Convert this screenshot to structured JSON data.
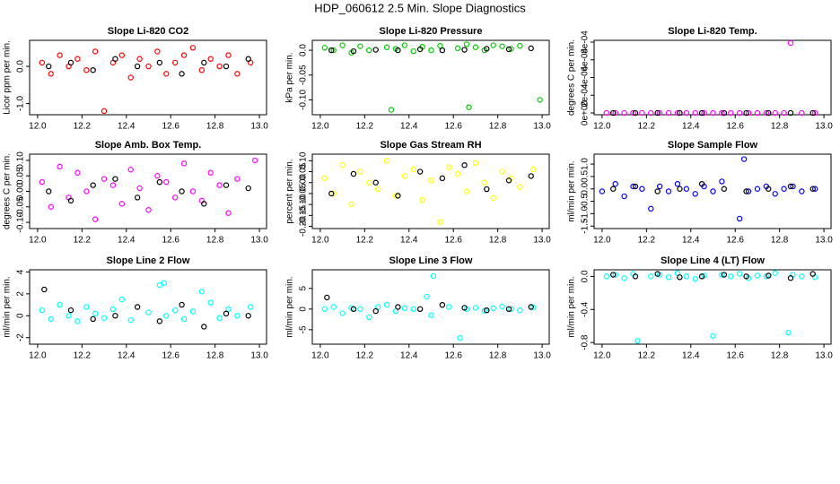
{
  "title": "HDP_060612  2.5 Min. Slope Diagnostics",
  "chart_data": [
    {
      "type": "scatter",
      "title": "Slope Li-820 CO2",
      "y_label": "Licor ppm per min.",
      "xlim": [
        11.964,
        13.032
      ],
      "xticks": [
        {
          "value": 12,
          "label": "12.0"
        },
        12.2,
        12.4,
        12.6,
        12.8,
        {
          "value": 13,
          "label": "13.0"
        }
      ],
      "ylim": [
        -1.3,
        0.7
      ],
      "yticks": [
        {
          "value": -1,
          "label": "-1.0"
        },
        {
          "value": 0,
          "label": "0.0"
        }
      ],
      "series": [
        {
          "color": "#ff0000",
          "x": [
            12.02,
            12.06,
            12.1,
            12.14,
            12.18,
            12.22,
            12.26,
            12.3,
            12.34,
            12.38,
            12.42,
            12.46,
            12.5,
            12.54,
            12.58,
            12.62,
            12.66,
            12.7,
            12.74,
            12.78,
            12.82,
            12.86,
            12.9,
            12.96
          ],
          "values": [
            0.1,
            -0.2,
            0.3,
            0.0,
            0.2,
            -0.1,
            0.4,
            -1.2,
            0.1,
            0.3,
            -0.3,
            0.2,
            0.0,
            0.4,
            -0.2,
            0.1,
            0.3,
            0.5,
            -0.1,
            0.2,
            0.0,
            0.3,
            -0.2,
            0.1
          ]
        },
        {
          "color": "#000000",
          "x": [
            12.05,
            12.15,
            12.25,
            12.35,
            12.45,
            12.55,
            12.65,
            12.75,
            12.85,
            12.95
          ],
          "values": [
            0.0,
            0.1,
            -0.1,
            0.2,
            0.0,
            0.1,
            -0.2,
            0.1,
            0.0,
            0.2
          ]
        }
      ]
    },
    {
      "type": "scatter",
      "title": "Slope Li-820 Pressure",
      "y_label": "kPa per min.",
      "xlim": [
        11.964,
        13.032
      ],
      "xticks": [
        {
          "value": 12,
          "label": "12.0"
        },
        12.2,
        12.4,
        12.6,
        12.8,
        {
          "value": 13,
          "label": "13.0"
        }
      ],
      "ylim": [
        -0.13,
        0.02
      ],
      "yticks": [
        {
          "value": -0.1,
          "label": "-0.10"
        },
        -0.05,
        {
          "value": 0,
          "label": "0.0"
        }
      ],
      "series": [
        {
          "color": "#00cc00",
          "x": [
            12.02,
            12.06,
            12.1,
            12.14,
            12.18,
            12.22,
            12.32,
            12.3,
            12.34,
            12.38,
            12.42,
            12.46,
            12.5,
            12.54,
            12.67,
            12.62,
            12.66,
            12.7,
            12.74,
            12.78,
            12.82,
            12.86,
            12.9,
            12.99
          ],
          "values": [
            0.005,
            0.0,
            0.01,
            -0.005,
            0.008,
            0.0,
            -0.12,
            0.006,
            0.003,
            0.01,
            -0.002,
            0.007,
            0.0,
            0.009,
            -0.115,
            0.004,
            0.012,
            0.006,
            0.0,
            0.01,
            0.008,
            0.003,
            0.009,
            -0.1
          ]
        },
        {
          "color": "#000000",
          "x": [
            12.05,
            12.15,
            12.25,
            12.35,
            12.45,
            12.55,
            12.65,
            12.75,
            12.85,
            12.95
          ],
          "values": [
            0.0,
            -0.002,
            0.001,
            0.0,
            0.002,
            0.0,
            0.001,
            0.003,
            0.002,
            0.004
          ]
        }
      ]
    },
    {
      "type": "scatter",
      "title": "Slope Li-820 Temp.",
      "y_label": "degrees C per min.",
      "xlim": [
        11.964,
        13.032
      ],
      "xticks": [
        {
          "value": 12,
          "label": "12.0"
        },
        12.2,
        12.4,
        12.6,
        12.8,
        {
          "value": 13,
          "label": "13.0"
        }
      ],
      "ylim": [
        -2e-05,
        0.00082
      ],
      "yticks": [
        {
          "value": 0,
          "label": "0e+00"
        },
        {
          "value": 0.0002,
          "label": "2e-04"
        },
        {
          "value": 0.0004,
          "label": "4e-04"
        },
        {
          "value": 0.0006,
          "label": "6e-04"
        },
        {
          "value": 0.0008,
          "label": "8e-04"
        }
      ],
      "series": [
        {
          "color": "#ff00ff",
          "x": [
            12.02,
            12.06,
            12.1,
            12.14,
            12.18,
            12.22,
            12.26,
            12.3,
            12.34,
            12.38,
            12.42,
            12.46,
            12.5,
            12.54,
            12.58,
            12.62,
            12.66,
            12.7,
            12.74,
            12.78,
            12.82,
            12.85,
            12.9,
            12.96
          ],
          "values": [
            0,
            0,
            0,
            0,
            0,
            0,
            0,
            0,
            0,
            0,
            0,
            0,
            0,
            0,
            0,
            0,
            0,
            0,
            0,
            0,
            0,
            0.00079,
            0,
            0
          ]
        },
        {
          "color": "#000000",
          "x": [
            12.05,
            12.15,
            12.25,
            12.35,
            12.45,
            12.55,
            12.65,
            12.75,
            12.85,
            12.95
          ],
          "values": [
            0,
            0,
            0,
            0,
            0,
            0,
            0,
            0,
            0,
            0
          ]
        }
      ]
    },
    {
      "type": "scatter",
      "title": "Slope Amb. Box Temp.",
      "y_label": "degrees C per min.",
      "xlim": [
        11.964,
        13.032
      ],
      "xticks": [
        {
          "value": 12,
          "label": "12.0"
        },
        12.2,
        12.4,
        12.6,
        12.8,
        {
          "value": 13,
          "label": "13.0"
        }
      ],
      "ylim": [
        -0.12,
        0.12
      ],
      "yticks": [
        {
          "value": -0.1,
          "label": "-0.10"
        },
        -0.05,
        {
          "value": 0,
          "label": "0.00"
        },
        0.05,
        {
          "value": 0.1,
          "label": "0.10"
        }
      ],
      "series": [
        {
          "color": "#ff00ff",
          "x": [
            12.02,
            12.06,
            12.1,
            12.14,
            12.18,
            12.22,
            12.26,
            12.3,
            12.34,
            12.38,
            12.42,
            12.46,
            12.5,
            12.54,
            12.58,
            12.62,
            12.66,
            12.7,
            12.74,
            12.78,
            12.82,
            12.86,
            12.9,
            12.98
          ],
          "values": [
            0.03,
            -0.05,
            0.08,
            -0.02,
            0.06,
            0.0,
            -0.09,
            0.04,
            0.02,
            -0.04,
            0.07,
            0.01,
            -0.06,
            0.05,
            0.03,
            -0.02,
            0.09,
            0.0,
            -0.03,
            0.06,
            0.02,
            -0.07,
            0.04,
            0.1
          ]
        },
        {
          "color": "#000000",
          "x": [
            12.05,
            12.15,
            12.25,
            12.35,
            12.45,
            12.55,
            12.65,
            12.75,
            12.85,
            12.95
          ],
          "values": [
            0.0,
            -0.03,
            0.02,
            0.04,
            -0.02,
            0.03,
            0.0,
            -0.04,
            0.02,
            0.01
          ]
        }
      ]
    },
    {
      "type": "scatter",
      "title": "Slope Gas Stream RH",
      "y_label": "percent per min.",
      "xlim": [
        11.964,
        13.032
      ],
      "xticks": [
        {
          "value": 12,
          "label": "12.0"
        },
        12.2,
        12.4,
        12.6,
        12.8,
        {
          "value": 13,
          "label": "13.0"
        }
      ],
      "ylim": [
        -0.21,
        0.13
      ],
      "yticks": [
        {
          "value": -0.2,
          "label": "-0.20"
        },
        -0.15,
        {
          "value": -0.1,
          "label": "-0.10"
        },
        -0.05,
        {
          "value": 0,
          "label": "0.00"
        },
        0.05,
        {
          "value": 0.1,
          "label": "0.10"
        }
      ],
      "series": [
        {
          "color": "#ffff00",
          "x": [
            12.02,
            12.06,
            12.1,
            12.14,
            12.18,
            12.22,
            12.26,
            12.3,
            12.34,
            12.38,
            12.42,
            12.46,
            12.5,
            12.54,
            12.58,
            12.62,
            12.66,
            12.7,
            12.74,
            12.78,
            12.82,
            12.86,
            12.9,
            12.96
          ],
          "values": [
            0.02,
            -0.05,
            0.08,
            -0.1,
            0.05,
            0.0,
            -0.03,
            0.1,
            -0.06,
            0.03,
            0.06,
            -0.08,
            0.01,
            -0.18,
            0.07,
            0.04,
            -0.04,
            0.09,
            0.0,
            -0.07,
            0.05,
            0.02,
            -0.02,
            0.06
          ]
        },
        {
          "color": "#000000",
          "x": [
            12.05,
            12.15,
            12.25,
            12.35,
            12.45,
            12.55,
            12.65,
            12.75,
            12.85,
            12.95
          ],
          "values": [
            -0.05,
            0.04,
            0.0,
            -0.06,
            0.05,
            0.02,
            0.08,
            -0.03,
            0.01,
            0.03
          ]
        }
      ]
    },
    {
      "type": "scatter",
      "title": "Slope Sample Flow",
      "y_label": "ml/min per min.",
      "xlim": [
        11.964,
        13.032
      ],
      "xticks": [
        {
          "value": 12,
          "label": "12.0"
        },
        12.2,
        12.4,
        12.6,
        12.8,
        {
          "value": 13,
          "label": "13.0"
        }
      ],
      "ylim": [
        -1.6,
        1.4
      ],
      "yticks": [
        -1.5,
        {
          "value": -1,
          "label": "-1.0"
        },
        -0.5,
        {
          "value": 0,
          "label": "0.0"
        },
        0.5,
        {
          "value": 1,
          "label": "1.0"
        }
      ],
      "series": [
        {
          "color": "#0000ff",
          "x": [
            12.0,
            12.06,
            12.1,
            12.14,
            12.18,
            12.22,
            12.26,
            12.3,
            12.34,
            12.38,
            12.42,
            12.46,
            12.5,
            12.54,
            12.62,
            12.64,
            12.66,
            12.7,
            12.74,
            12.78,
            12.82,
            12.86,
            12.9,
            12.96
          ],
          "values": [
            -0.1,
            0.2,
            -0.3,
            0.1,
            0.0,
            -0.8,
            0.1,
            -0.1,
            0.2,
            0.0,
            -0.2,
            0.1,
            -0.1,
            0.3,
            -1.2,
            1.2,
            -0.1,
            0.0,
            0.1,
            -0.2,
            0.0,
            0.1,
            -0.1,
            0.0
          ]
        },
        {
          "color": "#000000",
          "x": [
            12.05,
            12.15,
            12.25,
            12.35,
            12.45,
            12.55,
            12.65,
            12.75,
            12.85,
            12.95
          ],
          "values": [
            0.0,
            0.1,
            -0.1,
            0.0,
            0.2,
            0.0,
            -0.1,
            0.0,
            0.1,
            0.0
          ]
        }
      ]
    },
    {
      "type": "scatter",
      "title": "Slope Line 2 Flow",
      "y_label": "ml/min per min.",
      "xlim": [
        11.964,
        13.032
      ],
      "xticks": [
        {
          "value": 12,
          "label": "12.0"
        },
        12.2,
        12.4,
        12.6,
        12.8,
        {
          "value": 13,
          "label": "13.0"
        }
      ],
      "ylim": [
        -2.6,
        4.2
      ],
      "yticks": [
        -2,
        0,
        2,
        4
      ],
      "series": [
        {
          "color": "#00ffff",
          "x": [
            12.02,
            12.06,
            12.1,
            12.14,
            12.18,
            12.22,
            12.26,
            12.3,
            12.34,
            12.38,
            12.42,
            12.55,
            12.5,
            12.57,
            12.58,
            12.62,
            12.66,
            12.74,
            12.7,
            12.78,
            12.82,
            12.86,
            12.9,
            12.96
          ],
          "values": [
            0.5,
            -0.3,
            1.0,
            0.0,
            -0.5,
            0.8,
            0.2,
            -0.2,
            0.6,
            1.5,
            -0.4,
            2.8,
            0.3,
            3.0,
            0.0,
            0.5,
            -0.3,
            2.2,
            0.4,
            1.2,
            -0.2,
            0.6,
            0.0,
            0.8
          ]
        },
        {
          "color": "#000000",
          "x": [
            12.03,
            12.15,
            12.25,
            12.35,
            12.45,
            12.55,
            12.65,
            12.75,
            12.85,
            12.95
          ],
          "values": [
            2.4,
            0.5,
            -0.3,
            0.0,
            0.8,
            -0.5,
            1.0,
            -1.0,
            0.2,
            0.0
          ]
        }
      ]
    },
    {
      "type": "scatter",
      "title": "Slope Line 3 Flow",
      "y_label": "ml/min per min.",
      "xlim": [
        11.964,
        13.032
      ],
      "xticks": [
        {
          "value": 12,
          "label": "12.0"
        },
        12.2,
        12.4,
        12.6,
        12.8,
        {
          "value": 13,
          "label": "13.0"
        }
      ],
      "ylim": [
        -8.5,
        9.5
      ],
      "yticks": [
        -5,
        0,
        5
      ],
      "series": [
        {
          "color": "#00ffff",
          "x": [
            12.02,
            12.06,
            12.1,
            12.14,
            12.18,
            12.22,
            12.26,
            12.3,
            12.34,
            12.38,
            12.42,
            12.48,
            12.5,
            12.51,
            12.58,
            12.63,
            12.66,
            12.7,
            12.74,
            12.78,
            12.82,
            12.86,
            12.9,
            12.96
          ],
          "values": [
            0.0,
            0.5,
            -1.0,
            0.3,
            0.0,
            -2.0,
            0.5,
            1.0,
            -0.5,
            0.2,
            0.0,
            3.0,
            -1.5,
            8.0,
            0.5,
            -7.0,
            0.0,
            0.3,
            -0.4,
            0.2,
            0.6,
            0.0,
            -0.3,
            0.4
          ]
        },
        {
          "color": "#000000",
          "x": [
            12.03,
            12.15,
            12.25,
            12.35,
            12.45,
            12.55,
            12.65,
            12.75,
            12.85,
            12.95
          ],
          "values": [
            2.8,
            0.0,
            -0.5,
            0.5,
            0.0,
            1.0,
            0.3,
            -0.3,
            0.0,
            0.5
          ]
        }
      ]
    },
    {
      "type": "scatter",
      "title": "Slope Line 4 (LT) Flow",
      "y_label": "ml/min per min.",
      "xlim": [
        11.964,
        13.032
      ],
      "xticks": [
        {
          "value": 12,
          "label": "12.0"
        },
        12.2,
        12.4,
        12.6,
        12.8,
        {
          "value": 13,
          "label": "13.0"
        }
      ],
      "ylim": [
        -0.82,
        0.08
      ],
      "yticks": [
        {
          "value": -0.8,
          "label": "-0.8"
        },
        {
          "value": -0.4,
          "label": "-0.4"
        },
        {
          "value": 0,
          "label": "0.0"
        }
      ],
      "series": [
        {
          "color": "#00ffff",
          "x": [
            12.02,
            12.06,
            12.1,
            12.14,
            12.16,
            12.22,
            12.26,
            12.3,
            12.34,
            12.38,
            12.42,
            12.46,
            12.5,
            12.54,
            12.58,
            12.62,
            12.66,
            12.7,
            12.74,
            12.78,
            12.84,
            12.86,
            12.9,
            12.96
          ],
          "values": [
            0.0,
            0.02,
            -0.02,
            0.03,
            -0.78,
            0.0,
            0.02,
            -0.01,
            0.04,
            0.0,
            -0.03,
            0.01,
            -0.72,
            0.02,
            0.0,
            0.03,
            -0.02,
            0.01,
            0.0,
            0.04,
            -0.68,
            0.02,
            0.0,
            -0.01
          ]
        },
        {
          "color": "#000000",
          "x": [
            12.05,
            12.15,
            12.25,
            12.35,
            12.45,
            12.55,
            12.65,
            12.75,
            12.85,
            12.95
          ],
          "values": [
            0.02,
            0.0,
            0.03,
            -0.01,
            0.0,
            0.02,
            0.0,
            0.01,
            -0.02,
            0.03
          ]
        }
      ]
    }
  ]
}
